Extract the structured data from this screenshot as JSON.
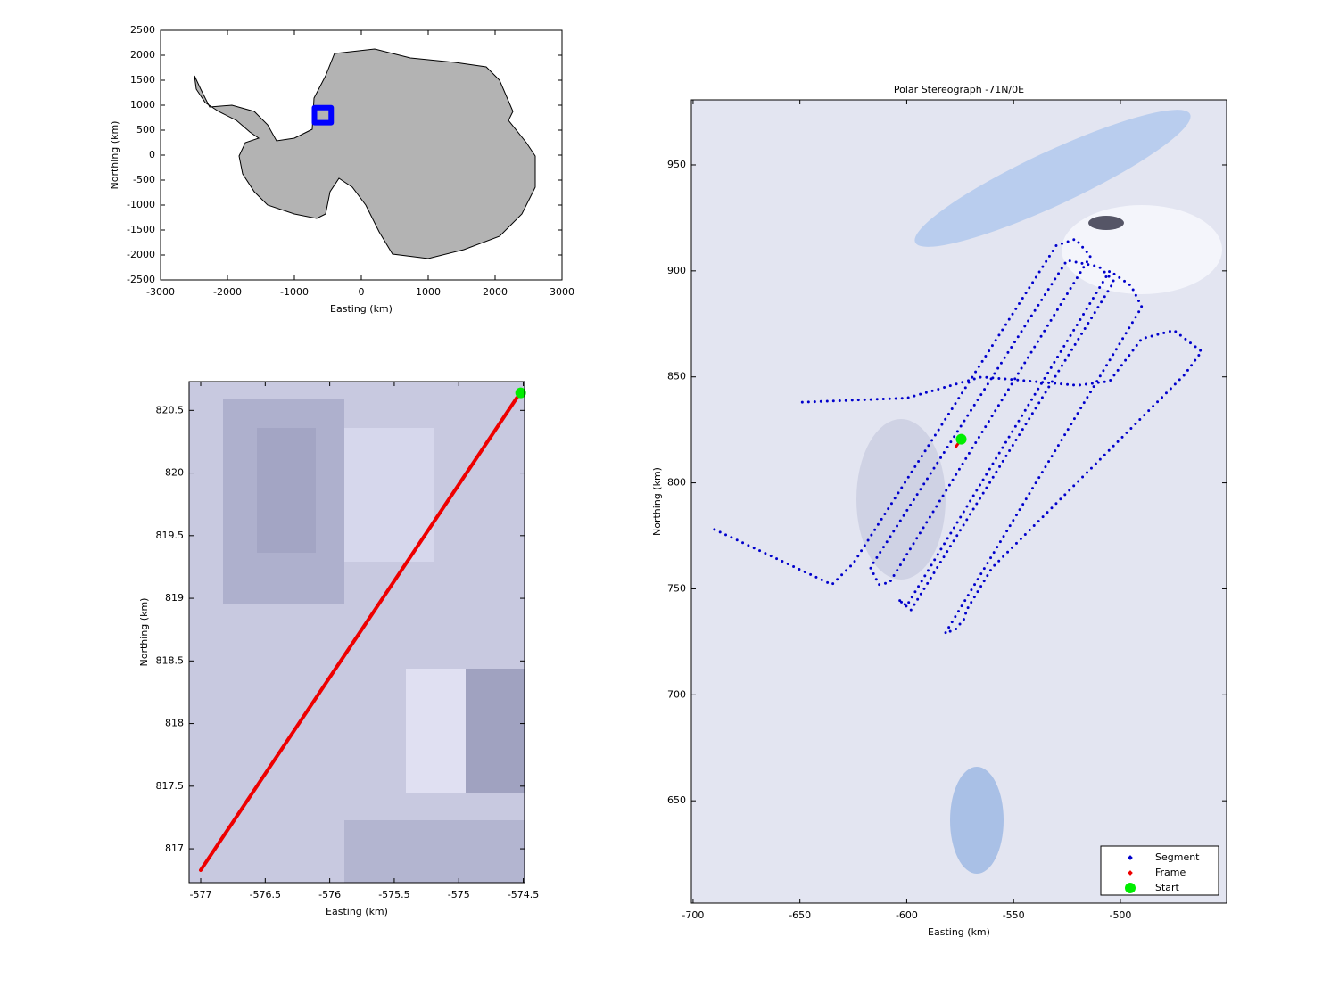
{
  "chart_data": [
    {
      "type": "line",
      "xlabel": "Easting (km)",
      "ylabel": "Northing (km)",
      "xlim": [
        -3000,
        3000
      ],
      "ylim": [
        -2500,
        2500
      ],
      "xticks": [
        -3000,
        -2000,
        -1000,
        0,
        1000,
        2000,
        3000
      ],
      "yticks": [
        -2500,
        -2000,
        -1500,
        -1000,
        -500,
        0,
        500,
        1000,
        1500,
        2000,
        2500
      ],
      "series": [
        {
          "color": "#0000ff",
          "line": "solid",
          "linewidth": 6,
          "marker": "none",
          "x": [
            -700,
            -450,
            -450,
            -700,
            -700
          ],
          "y": [
            650,
            650,
            950,
            950,
            650
          ]
        }
      ]
    },
    {
      "type": "line",
      "xlabel": "Easting (km)",
      "ylabel": "Northing (km)",
      "xlim": [
        -577.09,
        -574.49
      ],
      "ylim": [
        816.73,
        820.73
      ],
      "xticks": [
        -577,
        -576.5,
        -576,
        -575.5,
        -575,
        -574.5
      ],
      "yticks": [
        817,
        817.5,
        818,
        818.5,
        819,
        819.5,
        820,
        820.5
      ],
      "series": [
        {
          "color": "#ee0000",
          "line": "solid",
          "linewidth": 4,
          "marker": "none",
          "x": [
            -577,
            -574.55
          ],
          "y": [
            816.83,
            820.6
          ]
        },
        {
          "color": "#00ee00",
          "line": "none",
          "marker": "circle",
          "x": [
            -574.52
          ],
          "y": [
            820.64
          ]
        }
      ]
    },
    {
      "type": "line",
      "title": "Polar Stereograph -71N/0E",
      "xlabel": "Easting (km)",
      "ylabel": "Northing (km)",
      "xlim": [
        -700.8,
        -450.3
      ],
      "ylim": [
        601.7,
        980.7
      ],
      "xticks": [
        -700,
        -650,
        -600,
        -550,
        -500
      ],
      "yticks": [
        650,
        700,
        750,
        800,
        850,
        900,
        950
      ],
      "legend": "lower right",
      "series": [
        {
          "name": "Segment",
          "color": "#0000cc",
          "line": "dotted",
          "linewidth": 3,
          "marker": "none",
          "x": [
            -690,
            -635,
            -625,
            -530,
            -521,
            -514,
            -608,
            -613,
            -617,
            -525,
            -510,
            -503,
            -598,
            -604,
            -600,
            -505,
            -495,
            -490,
            -582,
            -577,
            -573,
            -572,
            -560,
            -470,
            -462,
            -475,
            -490,
            -505,
            -520,
            -565,
            -600,
            -650
          ],
          "y": [
            778,
            752,
            762,
            912,
            915,
            907,
            753,
            752,
            760,
            905,
            902,
            895,
            740,
            745,
            742,
            900,
            893,
            883,
            729,
            731,
            736,
            740,
            760,
            851,
            862,
            872,
            868,
            848,
            846,
            850,
            840,
            838
          ]
        },
        {
          "name": "Frame",
          "color": "#ee0000",
          "line": "solid",
          "linewidth": 3,
          "marker": "none",
          "x": [
            -577,
            -574.5
          ],
          "y": [
            817,
            820.6
          ]
        },
        {
          "name": "Start",
          "color": "#00ee00",
          "line": "none",
          "marker": "circle",
          "x": [
            -574.5
          ],
          "y": [
            820.6
          ]
        }
      ]
    }
  ]
}
